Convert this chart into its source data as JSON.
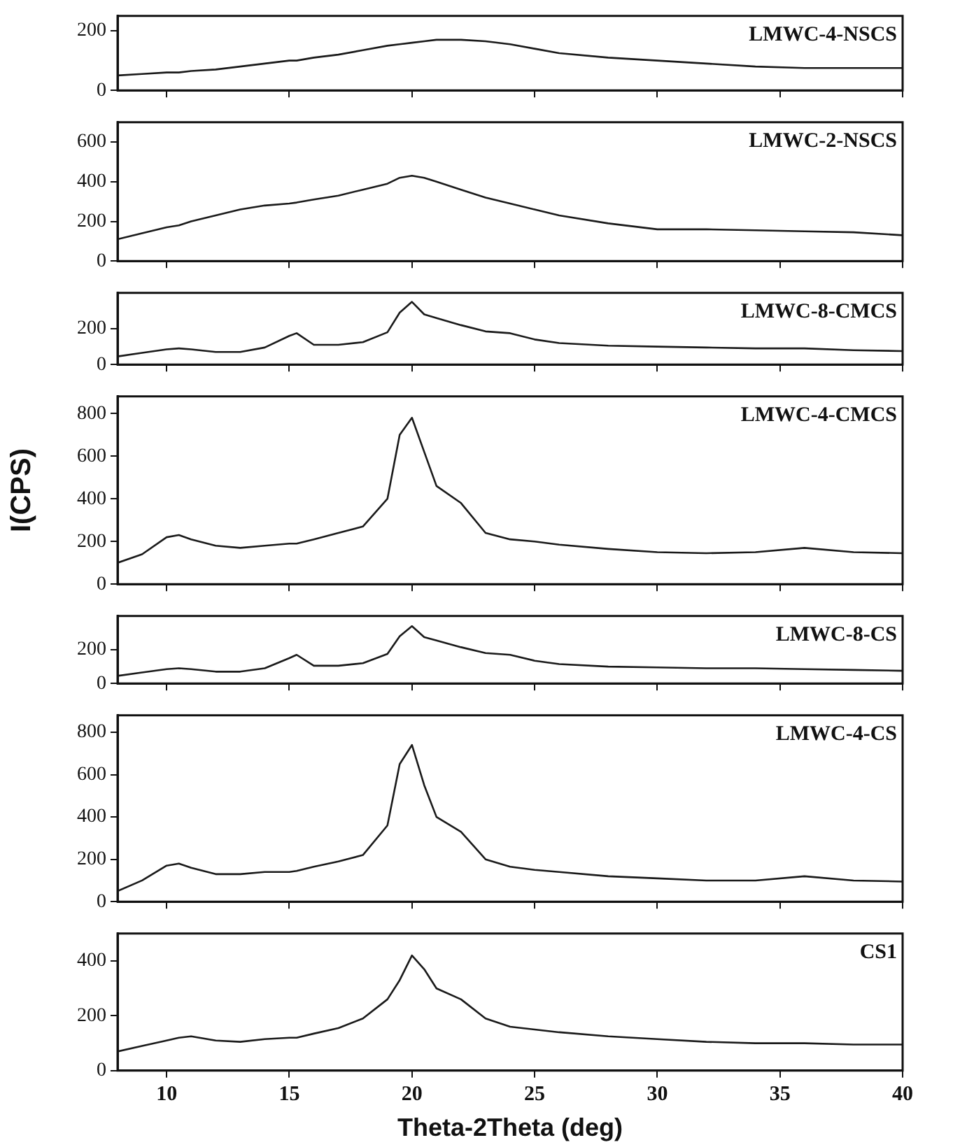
{
  "chart_data": [
    {
      "type": "line",
      "x": [
        8,
        9,
        10,
        10.5,
        11,
        12,
        13,
        14,
        15,
        15.3,
        16,
        17,
        18,
        19,
        19.5,
        20,
        20.5,
        21,
        22,
        23,
        24,
        25,
        26,
        28,
        30,
        32,
        34,
        36,
        38,
        40
      ],
      "series": [
        {
          "name": "LMWC-4-NSCS",
          "color": "#1a1a1a",
          "values": [
            50,
            55,
            60,
            60,
            65,
            70,
            80,
            90,
            100,
            100,
            110,
            120,
            135,
            150,
            155,
            160,
            165,
            170,
            170,
            165,
            155,
            140,
            125,
            110,
            100,
            90,
            80,
            75,
            75,
            75
          ]
        }
      ],
      "xlim": [
        8,
        40
      ],
      "xticks": [
        10,
        15,
        20,
        25,
        30,
        35,
        40
      ],
      "ylim": [
        0,
        250
      ],
      "yticks": [
        0,
        200
      ],
      "tick_labels": "y",
      "marker": "none",
      "line_style": "solid",
      "grid": false
    },
    {
      "type": "line",
      "x": [
        8,
        9,
        10,
        10.5,
        11,
        12,
        13,
        14,
        15,
        15.3,
        16,
        17,
        18,
        19,
        19.5,
        20,
        20.5,
        21,
        22,
        23,
        24,
        25,
        26,
        28,
        30,
        32,
        34,
        36,
        38,
        40
      ],
      "series": [
        {
          "name": "LMWC-2-NSCS",
          "color": "#1a1a1a",
          "values": [
            110,
            140,
            170,
            180,
            200,
            230,
            260,
            280,
            290,
            295,
            310,
            330,
            360,
            390,
            420,
            430,
            420,
            400,
            360,
            320,
            290,
            260,
            230,
            190,
            160,
            160,
            155,
            150,
            145,
            130
          ]
        }
      ],
      "xlim": [
        8,
        40
      ],
      "xticks": [
        10,
        15,
        20,
        25,
        30,
        35,
        40
      ],
      "ylim": [
        0,
        700
      ],
      "yticks": [
        0,
        200,
        400,
        600
      ],
      "tick_labels": "y",
      "marker": "none",
      "line_style": "solid",
      "grid": false
    },
    {
      "type": "line",
      "x": [
        8,
        9,
        10,
        10.5,
        11,
        12,
        13,
        14,
        15,
        15.3,
        16,
        17,
        18,
        19,
        19.5,
        20,
        20.5,
        21,
        22,
        23,
        24,
        25,
        26,
        28,
        30,
        32,
        34,
        36,
        38,
        40
      ],
      "series": [
        {
          "name": "LMWC-8-CMCS",
          "color": "#1a1a1a",
          "values": [
            45,
            65,
            85,
            90,
            85,
            70,
            70,
            95,
            160,
            175,
            110,
            110,
            125,
            180,
            290,
            350,
            280,
            260,
            220,
            185,
            175,
            140,
            120,
            105,
            100,
            95,
            90,
            90,
            80,
            75
          ]
        }
      ],
      "xlim": [
        8,
        40
      ],
      "xticks": [
        10,
        15,
        20,
        25,
        30,
        35,
        40
      ],
      "ylim": [
        0,
        400
      ],
      "yticks": [
        0,
        200
      ],
      "tick_labels": "y",
      "marker": "none",
      "line_style": "solid",
      "grid": false
    },
    {
      "type": "line",
      "ylabel": "I(CPS)",
      "x": [
        8,
        9,
        10,
        10.5,
        11,
        12,
        13,
        14,
        15,
        15.3,
        16,
        17,
        18,
        19,
        19.5,
        20,
        20.5,
        21,
        22,
        23,
        24,
        25,
        26,
        28,
        30,
        32,
        34,
        36,
        38,
        40
      ],
      "series": [
        {
          "name": "LMWC-4-CMCS",
          "color": "#1a1a1a",
          "values": [
            100,
            140,
            220,
            230,
            210,
            180,
            170,
            180,
            190,
            190,
            210,
            240,
            270,
            400,
            700,
            780,
            620,
            460,
            380,
            240,
            210,
            200,
            185,
            165,
            150,
            145,
            150,
            170,
            150,
            145
          ]
        }
      ],
      "xlim": [
        8,
        40
      ],
      "xticks": [
        10,
        15,
        20,
        25,
        30,
        35,
        40
      ],
      "ylim": [
        0,
        880
      ],
      "yticks": [
        0,
        200,
        400,
        600,
        800
      ],
      "tick_labels": "y",
      "marker": "none",
      "line_style": "solid",
      "grid": false
    },
    {
      "type": "line",
      "x": [
        8,
        9,
        10,
        10.5,
        11,
        12,
        13,
        14,
        15,
        15.3,
        16,
        17,
        18,
        19,
        19.5,
        20,
        20.5,
        21,
        22,
        23,
        24,
        25,
        26,
        28,
        30,
        32,
        34,
        36,
        38,
        40
      ],
      "series": [
        {
          "name": "LMWC-8-CS",
          "color": "#1a1a1a",
          "values": [
            45,
            65,
            85,
            90,
            85,
            70,
            70,
            90,
            150,
            170,
            105,
            105,
            120,
            175,
            280,
            340,
            275,
            255,
            215,
            180,
            170,
            135,
            115,
            100,
            95,
            90,
            90,
            85,
            80,
            75
          ]
        }
      ],
      "xlim": [
        8,
        40
      ],
      "xticks": [
        10,
        15,
        20,
        25,
        30,
        35,
        40
      ],
      "ylim": [
        0,
        400
      ],
      "yticks": [
        0,
        200
      ],
      "tick_labels": "y",
      "marker": "none",
      "line_style": "solid",
      "grid": false
    },
    {
      "type": "line",
      "x": [
        8,
        9,
        10,
        10.5,
        11,
        12,
        13,
        14,
        15,
        15.3,
        16,
        17,
        18,
        19,
        19.5,
        20,
        20.5,
        21,
        22,
        23,
        24,
        25,
        26,
        28,
        30,
        32,
        34,
        36,
        38,
        40
      ],
      "series": [
        {
          "name": "LMWC-4-CS",
          "color": "#1a1a1a",
          "values": [
            50,
            100,
            170,
            180,
            160,
            130,
            130,
            140,
            140,
            145,
            165,
            190,
            220,
            360,
            650,
            740,
            550,
            400,
            330,
            200,
            165,
            150,
            140,
            120,
            110,
            100,
            100,
            120,
            100,
            95
          ]
        }
      ],
      "xlim": [
        8,
        40
      ],
      "xticks": [
        10,
        15,
        20,
        25,
        30,
        35,
        40
      ],
      "ylim": [
        0,
        880
      ],
      "yticks": [
        0,
        200,
        400,
        600,
        800
      ],
      "tick_labels": "y",
      "marker": "none",
      "line_style": "solid",
      "grid": false
    },
    {
      "type": "line",
      "xlabel": "Theta-2Theta (deg)",
      "x": [
        8,
        9,
        10,
        10.5,
        11,
        12,
        13,
        14,
        15,
        15.3,
        16,
        17,
        18,
        19,
        19.5,
        20,
        20.5,
        21,
        22,
        23,
        24,
        25,
        26,
        28,
        30,
        32,
        34,
        36,
        38,
        40
      ],
      "series": [
        {
          "name": "CS1",
          "color": "#1a1a1a",
          "values": [
            70,
            90,
            110,
            120,
            125,
            110,
            105,
            115,
            120,
            120,
            135,
            155,
            190,
            260,
            330,
            420,
            370,
            300,
            260,
            190,
            160,
            150,
            140,
            125,
            115,
            105,
            100,
            100,
            95,
            95
          ]
        }
      ],
      "xlim": [
        8,
        40
      ],
      "xticks": [
        10,
        15,
        20,
        25,
        30,
        35,
        40
      ],
      "ylim": [
        0,
        500
      ],
      "yticks": [
        0,
        200,
        400
      ],
      "marker": "none",
      "line_style": "solid",
      "grid": false
    }
  ]
}
